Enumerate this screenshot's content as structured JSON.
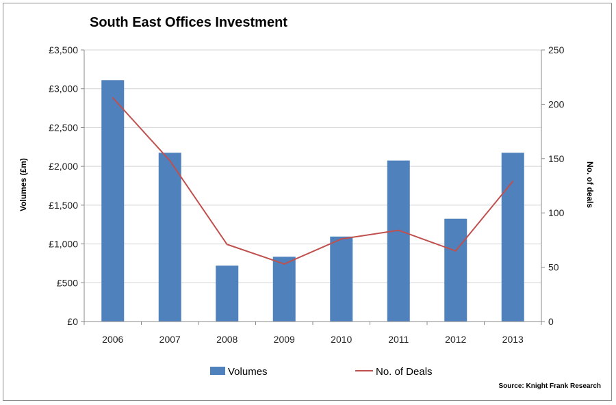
{
  "chart_data": {
    "type": "bar",
    "title": "South East Offices Investment",
    "categories": [
      "2006",
      "2007",
      "2008",
      "2009",
      "2010",
      "2011",
      "2012",
      "2013"
    ],
    "series": [
      {
        "name": "Volumes",
        "type": "bar",
        "axis": "left",
        "color": "#4f81bd",
        "values": [
          3110,
          2175,
          720,
          835,
          1095,
          2075,
          1325,
          2175
        ]
      },
      {
        "name": "No. of Deals",
        "type": "line",
        "axis": "right",
        "color": "#c0504d",
        "values": [
          206,
          148,
          71,
          53,
          76,
          84,
          65,
          129
        ]
      }
    ],
    "ylabel": "Volumes (£m)",
    "y2label": "No. of deals",
    "ylim": [
      0,
      3500
    ],
    "y2lim": [
      0,
      250
    ],
    "yticks": [
      "£0",
      "£500",
      "£1,000",
      "£1,500",
      "£2,000",
      "£2,500",
      "£3,000",
      "£3,500"
    ],
    "ytick_values": [
      0,
      500,
      1000,
      1500,
      2000,
      2500,
      3000,
      3500
    ],
    "y2ticks": [
      "0",
      "50",
      "100",
      "150",
      "200",
      "250"
    ],
    "y2tick_values": [
      0,
      50,
      100,
      150,
      200,
      250
    ],
    "grid": true,
    "legend": [
      "Volumes",
      "No. of Deals"
    ],
    "legend_position": "bottom",
    "source": "Source: Knight Frank Research"
  }
}
